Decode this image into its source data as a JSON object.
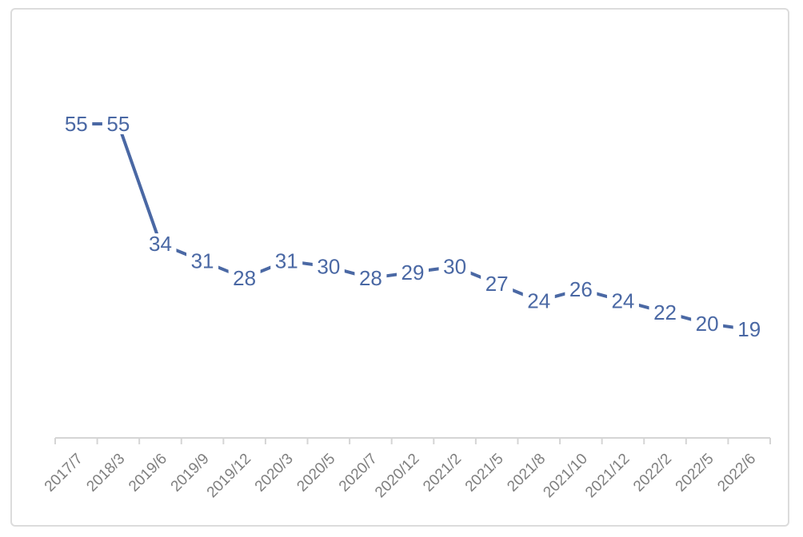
{
  "chart_data": {
    "type": "line",
    "title": "",
    "xlabel": "",
    "ylabel": "",
    "categories": [
      "2017/7",
      "2018/3",
      "2019/6",
      "2019/9",
      "2019/12",
      "2020/3",
      "2020/5",
      "2020/7",
      "2020/12",
      "2021/2",
      "2021/5",
      "2021/8",
      "2021/10",
      "2021/12",
      "2022/2",
      "2022/5",
      "2022/6"
    ],
    "values": [
      55,
      55,
      34,
      31,
      28,
      31,
      30,
      28,
      29,
      30,
      27,
      24,
      26,
      24,
      22,
      20,
      19
    ],
    "ylim": [
      0,
      62
    ],
    "grid": false,
    "legend": null,
    "data_labels_shown": true,
    "x_tick_label_rotation": -45,
    "series_color": "#4a68a4",
    "axis_color": "#d5d5d5",
    "tick_label_color": "#7f7f7f",
    "label_background": "#ffffff",
    "card_border_color": "#dcdcdc"
  }
}
